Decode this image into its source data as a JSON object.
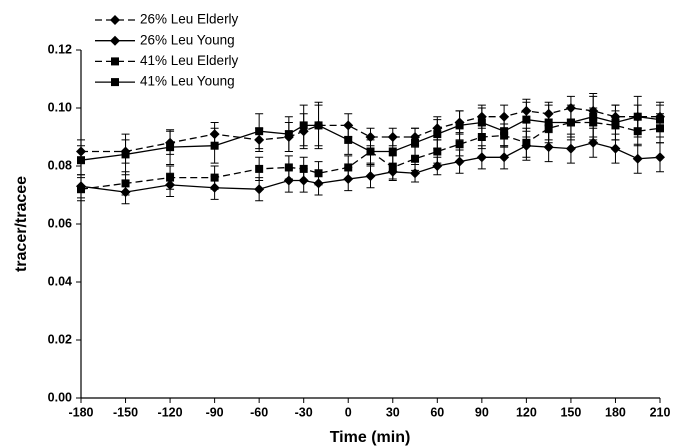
{
  "chart_data": {
    "type": "line",
    "x_label": "Time (min)",
    "y_label": "tracer/tracee",
    "x": [
      -180,
      -150,
      -120,
      -90,
      -60,
      -40,
      -30,
      -20,
      0,
      15,
      30,
      45,
      60,
      75,
      90,
      105,
      120,
      135,
      150,
      165,
      180,
      195,
      210
    ],
    "xlim": [
      -180,
      210
    ],
    "xticks": [
      -180,
      -150,
      -120,
      -90,
      -60,
      -30,
      0,
      30,
      60,
      90,
      120,
      150,
      180,
      210
    ],
    "ylim": [
      0,
      0.12
    ],
    "yticks": [
      {
        "value": 0,
        "label": "0.00"
      },
      0.02,
      0.04,
      0.06,
      0.08,
      {
        "value": 0.1,
        "label": "0.10"
      },
      0.12
    ],
    "legend": "top-left",
    "series": [
      {
        "name": "26% Leu Elderly",
        "color": "#000000",
        "dashed": true,
        "marker": "diamond",
        "values": [
          0.085,
          0.085,
          0.088,
          0.091,
          0.089,
          0.09,
          0.092,
          0.094,
          0.094,
          0.09,
          0.09,
          0.09,
          0.093,
          0.095,
          0.097,
          0.097,
          0.099,
          0.098,
          0.1,
          0.099,
          0.097,
          0.097,
          0.097
        ],
        "errors": [
          0.004,
          0.004,
          0.004,
          0.004,
          0.004,
          0.005,
          0.006,
          0.007,
          0.004,
          0.003,
          0.003,
          0.003,
          0.004,
          0.004,
          0.004,
          0.004,
          0.004,
          0.004,
          0.004,
          0.005,
          0.004,
          0.004,
          0.004
        ]
      },
      {
        "name": "26% Leu Young",
        "color": "#000000",
        "dashed": false,
        "marker": "diamond",
        "values": [
          0.073,
          0.071,
          0.0735,
          0.0725,
          0.072,
          0.075,
          0.075,
          0.074,
          0.0755,
          0.0765,
          0.078,
          0.0775,
          0.08,
          0.0815,
          0.083,
          0.083,
          0.087,
          0.0865,
          0.086,
          0.088,
          0.086,
          0.0825,
          0.083
        ],
        "errors": [
          0.004,
          0.004,
          0.004,
          0.004,
          0.004,
          0.004,
          0.004,
          0.004,
          0.004,
          0.004,
          0.003,
          0.003,
          0.003,
          0.004,
          0.004,
          0.004,
          0.005,
          0.005,
          0.005,
          0.005,
          0.005,
          0.005,
          0.005
        ]
      },
      {
        "name": "41% Leu Elderly",
        "color": "#000000",
        "dashed": true,
        "marker": "square",
        "values": [
          0.072,
          0.074,
          0.076,
          0.076,
          0.079,
          0.0795,
          0.079,
          0.0775,
          0.0795,
          0.085,
          0.0795,
          0.0825,
          0.085,
          0.0875,
          0.09,
          0.0905,
          0.088,
          0.093,
          0.095,
          0.095,
          0.094,
          0.092,
          0.093
        ],
        "errors": [
          0.004,
          0.004,
          0.004,
          0.004,
          0.004,
          0.004,
          0.004,
          0.004,
          0.004,
          0.004,
          0.004,
          0.004,
          0.004,
          0.004,
          0.004,
          0.004,
          0.005,
          0.005,
          0.005,
          0.005,
          0.005,
          0.005,
          0.005
        ]
      },
      {
        "name": "41% Leu Young",
        "color": "#000000",
        "dashed": false,
        "marker": "square",
        "values": [
          0.082,
          0.084,
          0.0865,
          0.087,
          0.092,
          0.091,
          0.094,
          0.094,
          0.089,
          0.085,
          0.085,
          0.088,
          0.091,
          0.094,
          0.095,
          0.092,
          0.096,
          0.095,
          0.095,
          0.097,
          0.095,
          0.097,
          0.096
        ],
        "errors": [
          0.005,
          0.007,
          0.006,
          0.006,
          0.006,
          0.006,
          0.007,
          0.008,
          0.005,
          0.005,
          0.005,
          0.005,
          0.005,
          0.005,
          0.005,
          0.005,
          0.006,
          0.006,
          0.006,
          0.008,
          0.006,
          0.007,
          0.006
        ]
      }
    ]
  }
}
